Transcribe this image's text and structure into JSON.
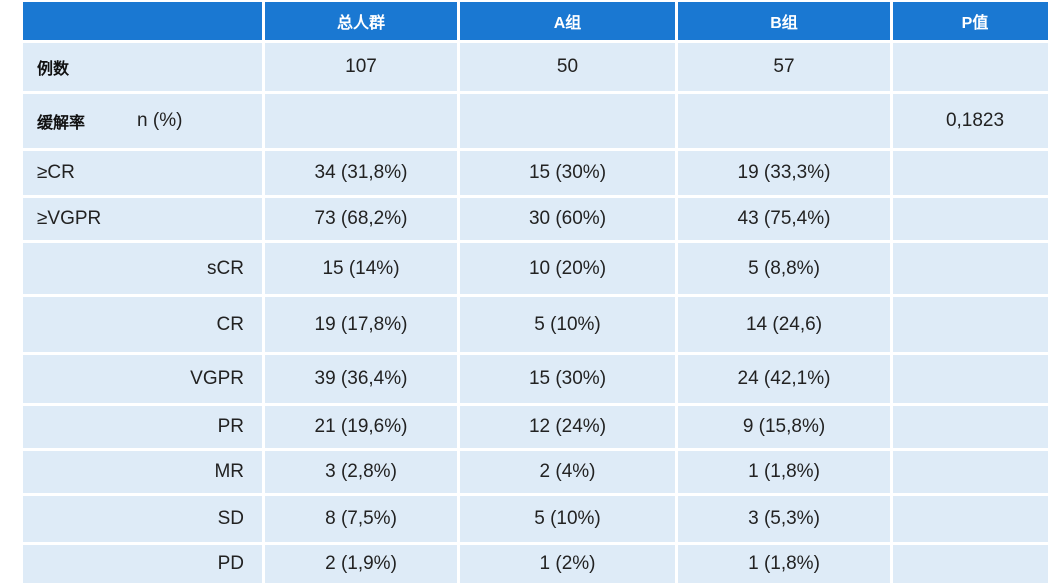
{
  "header": {
    "col1": "总人群",
    "col2": "A组",
    "col3": "B组",
    "col4": "P值"
  },
  "rows": {
    "cases": {
      "label": "例数",
      "total": "107",
      "a": "50",
      "b": "57"
    },
    "response_rate": {
      "label": "缓解率",
      "unit": "n (%)",
      "p": "0,1823"
    },
    "ge_cr": {
      "label": "≥CR",
      "total": "34 (31,8%)",
      "a": "15 (30%)",
      "b": "19 (33,3%)"
    },
    "ge_vgpr": {
      "label": "≥VGPR",
      "total": "73 (68,2%)",
      "a": "30 (60%)",
      "b": "43 (75,4%)"
    },
    "scr": {
      "label": "sCR",
      "total": "15 (14%)",
      "a": "10 (20%)",
      "b": "5 (8,8%)"
    },
    "cr": {
      "label": "CR",
      "total": "19 (17,8%)",
      "a": "5 (10%)",
      "b": "14 (24,6)"
    },
    "vgpr": {
      "label": "VGPR",
      "total": "39 (36,4%)",
      "a": "15 (30%)",
      "b": "24 (42,1%)"
    },
    "pr": {
      "label": "PR",
      "total": "21 (19,6%)",
      "a": "12 (24%)",
      "b": "9 (15,8%)"
    },
    "mr": {
      "label": "MR",
      "total": "3 (2,8%)",
      "a": "2 (4%)",
      "b": "1 (1,8%)"
    },
    "sd": {
      "label": "SD",
      "total": "8 (7,5%)",
      "a": "5 (10%)",
      "b": "3 (5,3%)"
    },
    "pd": {
      "label": "PD",
      "total": "2 (1,9%)",
      "a": "1 (2%)",
      "b": "1 (1,8%)"
    }
  }
}
